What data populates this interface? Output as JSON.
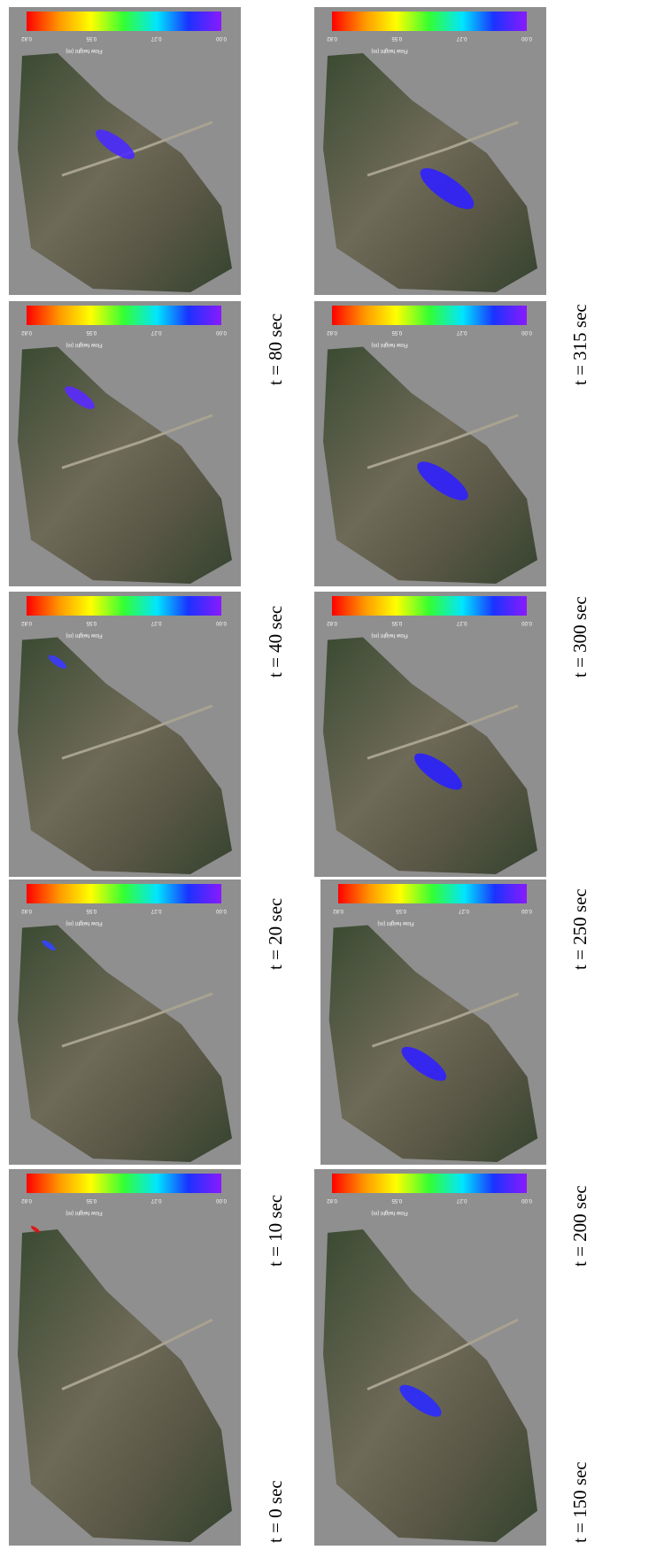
{
  "panels": [
    {
      "caption": "t = 0 sec"
    },
    {
      "caption": "t = 10 sec"
    },
    {
      "caption": "t = 20 sec"
    },
    {
      "caption": "t = 40 sec"
    },
    {
      "caption": "t = 80 sec"
    },
    {
      "caption": "t = 150 sec"
    },
    {
      "caption": "t = 200 sec"
    },
    {
      "caption": "t = 250 sec"
    },
    {
      "caption": "t = 300 sec"
    },
    {
      "caption": "t = 315 sec"
    }
  ],
  "colorbar": {
    "label": "Flow height (m)",
    "ticks": [
      "0.82",
      "0.55",
      "0.27",
      "0.00"
    ]
  }
}
